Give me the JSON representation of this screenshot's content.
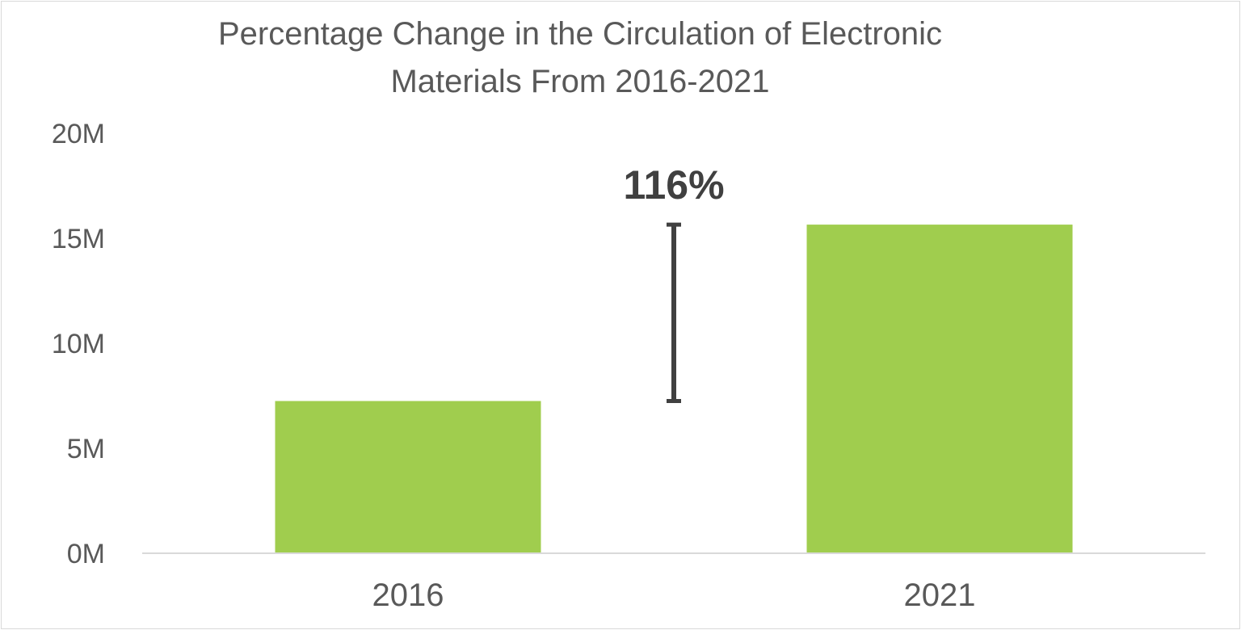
{
  "chart_data": {
    "type": "bar",
    "title_lines": [
      "Percentage Change in the Circulation of Electronic",
      "Materials From 2016-2021"
    ],
    "categories": [
      "2016",
      "2021"
    ],
    "values": [
      7.25,
      15.65
    ],
    "ylim": [
      0,
      20
    ],
    "yticks": [
      0,
      5,
      10,
      15,
      20
    ],
    "ytick_labels": [
      "0M",
      "5M",
      "10M",
      "15M",
      "20M"
    ],
    "annotation": {
      "label": "116%",
      "from_value": 7.25,
      "to_value": 15.65
    },
    "grid": false,
    "legend": "none",
    "colors": {
      "bar": "#a0cd4e",
      "axis": "#d9d9d9",
      "text": "#595959",
      "annotation": "#404040"
    }
  }
}
